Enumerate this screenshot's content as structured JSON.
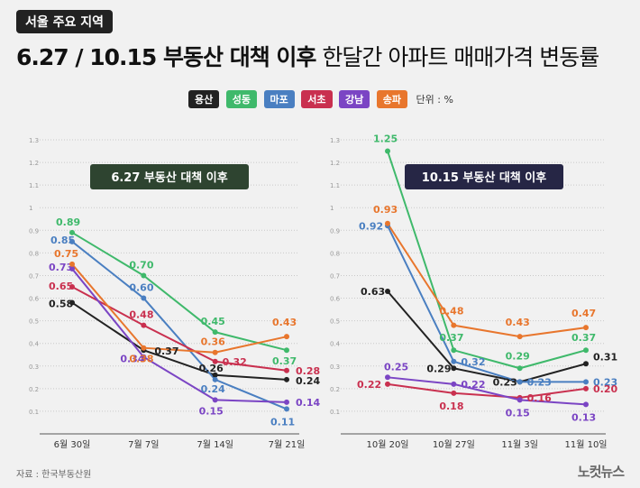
{
  "tag": "서울 주요 지역",
  "title_bold": "6.27 / 10.15 부동산 대책 이후",
  "title_rest": "한달간 아파트 매매가격 변동률",
  "unit": "단위 : %",
  "source": "자료 : 한국부동산원",
  "logo": "노컷뉴스",
  "colors": {
    "용산": "#222222",
    "성동": "#3fb96b",
    "마포": "#4a7fc1",
    "서초": "#c9304f",
    "강남": "#7b45c4",
    "송파": "#e8762d"
  },
  "chart_data": [
    {
      "type": "line",
      "title": "6.27 부동산 대책 이후",
      "categories": [
        "6월 30일",
        "7월 7일",
        "7월 14일",
        "7월 21일"
      ],
      "ylim": [
        0,
        1.3
      ],
      "yticks": [
        "0.1",
        "0.2",
        "0.3",
        "0.4",
        "0.5",
        "0.6",
        "0.7",
        "0.8",
        "0.9",
        "1",
        "1.1",
        "1.2",
        "1.3"
      ],
      "legend": "top-center",
      "series": [
        {
          "name": "용산",
          "values": [
            0.58,
            0.37,
            0.26,
            0.24
          ],
          "labels": [
            "0.58",
            "0.37",
            "0.26",
            "0.24"
          ]
        },
        {
          "name": "성동",
          "values": [
            0.89,
            0.7,
            0.45,
            0.37
          ],
          "labels": [
            "0.89",
            "0.70",
            "0.45",
            "0.37"
          ]
        },
        {
          "name": "마포",
          "values": [
            0.85,
            0.6,
            0.24,
            0.11
          ],
          "labels": [
            "0.85",
            "0.60",
            "0.24",
            "0.11"
          ]
        },
        {
          "name": "서초",
          "values": [
            0.65,
            0.48,
            0.32,
            0.28
          ],
          "labels": [
            "0.65",
            "0.48",
            "0.32",
            "0.28"
          ]
        },
        {
          "name": "강남",
          "values": [
            0.73,
            0.34,
            0.15,
            0.14
          ],
          "labels": [
            "0.73",
            "0.34",
            "0.15",
            "0.14"
          ]
        },
        {
          "name": "송파",
          "values": [
            0.75,
            0.38,
            0.36,
            0.43
          ],
          "labels": [
            "0.75",
            "0.38",
            "0.36",
            "0.43"
          ]
        }
      ]
    },
    {
      "type": "line",
      "title": "10.15 부동산 대책 이후",
      "categories": [
        "10월 20일",
        "10월 27일",
        "11월 3일",
        "11월 10일"
      ],
      "ylim": [
        0,
        1.3
      ],
      "yticks": [
        "0.1",
        "0.2",
        "0.3",
        "0.4",
        "0.5",
        "0.6",
        "0.7",
        "0.8",
        "0.9",
        "1",
        "1.1",
        "1.2",
        "1.3"
      ],
      "legend": "top-center",
      "series": [
        {
          "name": "용산",
          "values": [
            0.63,
            0.29,
            0.23,
            0.31
          ],
          "labels": [
            "0.63",
            "0.29",
            "0.23",
            "0.31"
          ]
        },
        {
          "name": "성동",
          "values": [
            1.25,
            0.37,
            0.29,
            0.37
          ],
          "labels": [
            "1.25",
            "0.37",
            "0.29",
            "0.37"
          ]
        },
        {
          "name": "마포",
          "values": [
            0.92,
            0.32,
            0.23,
            0.23
          ],
          "labels": [
            "0.92",
            "0.32",
            "0.23",
            "0.23"
          ]
        },
        {
          "name": "서초",
          "values": [
            0.22,
            0.18,
            0.16,
            0.2
          ],
          "labels": [
            "0.22",
            "0.18",
            "0.16",
            "0.20"
          ]
        },
        {
          "name": "강남",
          "values": [
            0.25,
            0.22,
            0.15,
            0.13
          ],
          "labels": [
            "0.25",
            "0.22",
            "0.15",
            "0.13"
          ]
        },
        {
          "name": "송파",
          "values": [
            0.93,
            0.48,
            0.43,
            0.47
          ],
          "labels": [
            "0.93",
            "0.48",
            "0.43",
            "0.47"
          ]
        }
      ]
    }
  ]
}
